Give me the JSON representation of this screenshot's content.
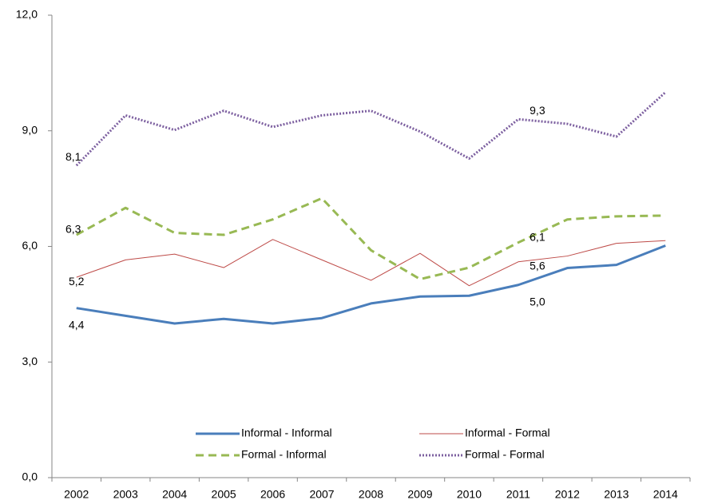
{
  "chart_data": {
    "type": "line",
    "categories": [
      "2002",
      "2003",
      "2004",
      "2005",
      "2006",
      "2007",
      "2008",
      "2009",
      "2010",
      "2011",
      "2012",
      "2013",
      "2014"
    ],
    "ylim": [
      0,
      12
    ],
    "yticks": [
      {
        "value": 0,
        "label": "0,0"
      },
      {
        "value": 3,
        "label": "3,0"
      },
      {
        "value": 6,
        "label": "6,0"
      },
      {
        "value": 9,
        "label": "9,0"
      },
      {
        "value": 12,
        "label": "12,0"
      }
    ],
    "grid": false,
    "series": [
      {
        "name": "Informal - Informal",
        "color": "#4a7ebb",
        "style": "solid",
        "values": [
          4.4,
          4.2,
          4.0,
          4.12,
          4.0,
          4.14,
          4.52,
          4.7,
          4.72,
          5.0,
          5.44,
          5.52,
          6.02
        ],
        "value_labels": [
          "4,4",
          null,
          null,
          null,
          null,
          null,
          null,
          null,
          null,
          "5,0",
          null,
          null,
          null
        ]
      },
      {
        "name": "Informal - Formal",
        "color": "#be4b48",
        "style": "thin",
        "values": [
          5.2,
          5.65,
          5.8,
          5.45,
          6.18,
          5.65,
          5.12,
          5.82,
          4.98,
          5.6,
          5.75,
          6.08,
          6.15
        ],
        "value_labels": [
          "5,2",
          null,
          null,
          null,
          null,
          null,
          null,
          null,
          null,
          "5,6",
          null,
          null,
          null
        ]
      },
      {
        "name": "Formal - Informal",
        "color": "#98b954",
        "style": "dashed",
        "values": [
          6.3,
          7.0,
          6.35,
          6.3,
          6.7,
          7.25,
          5.9,
          5.15,
          5.45,
          6.1,
          6.7,
          6.78,
          6.8
        ],
        "value_labels": [
          "6,3",
          null,
          null,
          null,
          null,
          null,
          null,
          null,
          null,
          "6,1",
          null,
          null,
          null
        ]
      },
      {
        "name": "Formal - Formal",
        "color": "#7d60a0",
        "style": "dotted",
        "values": [
          8.1,
          9.4,
          9.02,
          9.52,
          9.1,
          9.4,
          9.52,
          8.98,
          8.28,
          9.3,
          9.18,
          8.85,
          10.0
        ],
        "value_labels": [
          "8,1",
          null,
          null,
          null,
          null,
          null,
          null,
          null,
          null,
          "9,3",
          null,
          null,
          null
        ]
      }
    ]
  }
}
